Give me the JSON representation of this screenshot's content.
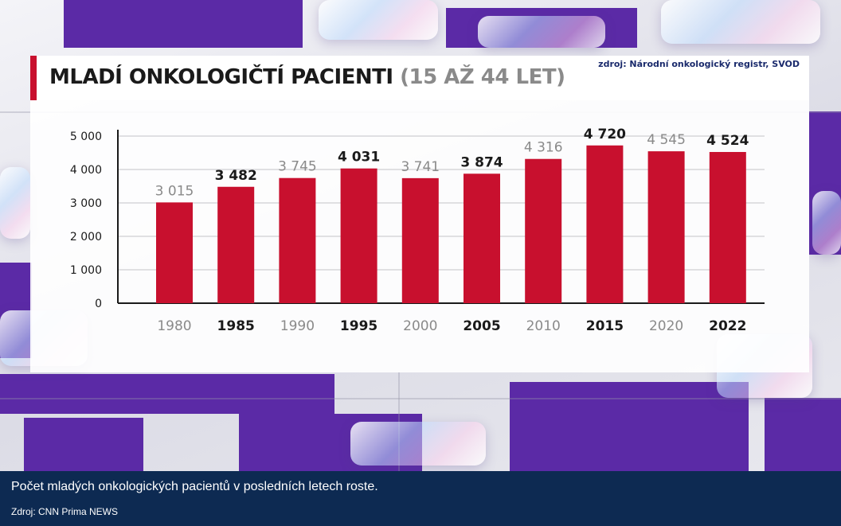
{
  "header": {
    "title": "MLADÍ ONKOLOGIČTÍ PACIENTI",
    "subtitle": "(15 AŽ 44 LET)",
    "source": "zdroj: Národní onkologický registr, SVOD"
  },
  "caption": {
    "text": "Počet mladých onkologických pacientů v posledních letech roste.",
    "credit": "Zdroj: CNN Prima NEWS"
  },
  "colors": {
    "bar": "#c8102e",
    "accent": "#c8102e",
    "caption_bg": "#0d2a52",
    "label_dark": "#1a1a1a",
    "label_gray": "#8a8a8a"
  },
  "chart_data": {
    "type": "bar",
    "title": "MLADÍ ONKOLOGIČTÍ PACIENTI (15 AŽ 44 LET)",
    "xlabel": "",
    "ylabel": "",
    "categories": [
      "1980",
      "1985",
      "1990",
      "1995",
      "2000",
      "2005",
      "2010",
      "2015",
      "2020",
      "2022"
    ],
    "values": [
      3015,
      3482,
      3745,
      4031,
      3741,
      3874,
      4316,
      4720,
      4545,
      4524
    ],
    "value_labels": [
      "3 015",
      "3 482",
      "3 745",
      "4 031",
      "3 741",
      "3 874",
      "4 316",
      "4 720",
      "4 545",
      "4 524"
    ],
    "label_emphasis": [
      "gray",
      "dark",
      "gray",
      "dark",
      "gray",
      "dark",
      "gray",
      "dark",
      "gray",
      "dark"
    ],
    "yticks": [
      0,
      1000,
      2000,
      3000,
      4000,
      5000
    ],
    "ytick_labels": [
      "0",
      "1 000",
      "2 000",
      "3 000",
      "4 000",
      "5 000"
    ],
    "ylim": [
      0,
      5000
    ],
    "grid": true,
    "legend": "none"
  }
}
